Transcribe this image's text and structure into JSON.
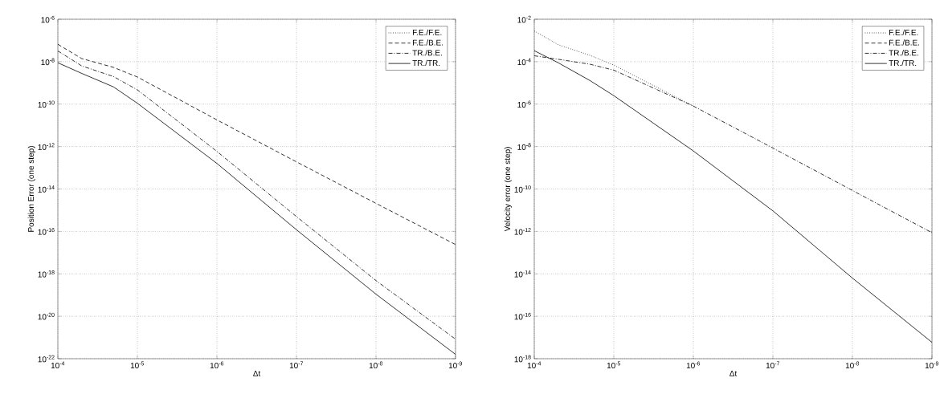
{
  "chart_data": [
    {
      "type": "line",
      "xlabel": "Δt",
      "ylabel": "Position Error (one step)",
      "log": "xy",
      "grid": true,
      "legend": "top right",
      "x": [
        0.0001,
        5e-05,
        2e-05,
        1e-05,
        1e-06,
        1e-07,
        1e-08,
        1e-09
      ],
      "xlim": [
        0.0001,
        1e-09
      ],
      "xticks": [
        {
          "value": 0.0001,
          "label": "10$^{-4}$"
        },
        {
          "value": 1e-05,
          "label": "10$^{-5}$"
        },
        {
          "value": 1e-06,
          "label": "10$^{-6}$"
        },
        {
          "value": 1e-07,
          "label": "10$^{-7}$"
        },
        {
          "value": 1e-08,
          "label": "10$^{-8}$"
        },
        {
          "value": 1e-09,
          "label": "10$^{-9}$"
        }
      ],
      "ylim": [
        1e-22,
        1e-06
      ],
      "yticks": [
        {
          "value": 1e-22,
          "label": "10$^{-22}$"
        },
        {
          "value": 1e-20,
          "label": "10$^{-20}$"
        },
        {
          "value": 1e-18,
          "label": "10$^{-18}$"
        },
        {
          "value": 1e-16,
          "label": "10$^{-16}$"
        },
        {
          "value": 1e-14,
          "label": "10$^{-14}$"
        },
        {
          "value": 1e-12,
          "label": "10$^{-12}$"
        },
        {
          "value": 1e-10,
          "label": "10$^{-10}$"
        },
        {
          "value": 1e-08,
          "label": "10$^{-8}$"
        },
        {
          "value": 1e-06,
          "label": "10$^{-6}$"
        }
      ],
      "series": [
        {
          "name": "F.E./F.E.",
          "color": "#000000",
          "line_style": "dotted",
          "values": [
            null,
            null,
            null,
            null,
            null,
            null,
            null,
            null
          ]
        },
        {
          "name": "F.E./B.E.",
          "color": "#000000",
          "line_style": "dashed",
          "values": [
            6.6e-08,
            1.4e-08,
            5.4e-09,
            1.9e-09,
            1.8e-11,
            1.9e-13,
            2.1e-15,
            2.4e-17
          ]
        },
        {
          "name": "TR./B.E.",
          "color": "#000000",
          "line_style": "dashdot",
          "values": [
            3.2e-08,
            6.3e-09,
            2e-09,
            4.7e-10,
            5.9e-13,
            5e-16,
            4.8e-19,
            8.3e-22
          ]
        },
        {
          "name": "TR./TR.",
          "color": "#000000",
          "line_style": "solid",
          "values": [
            8.9e-09,
            2.8e-09,
            6.5e-10,
            1.1e-10,
            1.6e-13,
            1.2e-16,
            1.1e-19,
            1.6e-22
          ]
        }
      ]
    },
    {
      "type": "line",
      "xlabel": "Δt",
      "ylabel": "Velocity error (one step)",
      "log": "xy",
      "grid": true,
      "legend": "top right",
      "x": [
        0.0001,
        5e-05,
        2e-05,
        1e-05,
        1e-06,
        1e-07,
        1e-08,
        1e-09
      ],
      "xlim": [
        0.0001,
        1e-09
      ],
      "xticks": [
        {
          "value": 0.0001,
          "label": "10$^{-4}$"
        },
        {
          "value": 1e-05,
          "label": "10$^{-5}$"
        },
        {
          "value": 1e-06,
          "label": "10$^{-6}$"
        },
        {
          "value": 1e-07,
          "label": "10$^{-7}$"
        },
        {
          "value": 1e-08,
          "label": "10$^{-8}$"
        },
        {
          "value": 1e-09,
          "label": "10$^{-9}$"
        }
      ],
      "ylim": [
        1e-18,
        0.01
      ],
      "yticks": [
        {
          "value": 1e-18,
          "label": "10$^{-18}$"
        },
        {
          "value": 1e-16,
          "label": "10$^{-16}$"
        },
        {
          "value": 1e-14,
          "label": "10$^{-14}$"
        },
        {
          "value": 1e-12,
          "label": "10$^{-12}$"
        },
        {
          "value": 1e-10,
          "label": "10$^{-10}$"
        },
        {
          "value": 1e-08,
          "label": "10$^{-8}$"
        },
        {
          "value": 1e-06,
          "label": "10$^{-6}$"
        },
        {
          "value": 0.0001,
          "label": "10$^{-4}$"
        },
        {
          "value": 0.01,
          "label": "10$^{-2}$"
        }
      ],
      "series": [
        {
          "name": "F.E./F.E.",
          "color": "#000000",
          "line_style": "dotted",
          "values": [
            0.0028,
            0.00063,
            0.0002,
            6.9e-05,
            8.1e-07,
            null,
            null,
            null
          ]
        },
        {
          "name": "F.E./B.E.",
          "color": "#000000",
          "line_style": "dashed",
          "values": [
            null,
            null,
            null,
            null,
            null,
            null,
            null,
            null
          ]
        },
        {
          "name": "TR./B.E.",
          "color": "#000000",
          "line_style": "dashdot",
          "values": [
            0.00019,
            0.00013,
            7.6e-05,
            4e-05,
            8.1e-07,
            8.5e-09,
            8.5e-11,
            8.7e-13
          ]
        },
        {
          "name": "TR./TR.",
          "color": "#000000",
          "line_style": "solid",
          "values": [
            0.00033,
            8.9e-05,
            1.3e-05,
            2.5e-06,
            6.2e-09,
            9.3e-12,
            6.3e-15,
            5.9e-18
          ]
        }
      ]
    }
  ]
}
